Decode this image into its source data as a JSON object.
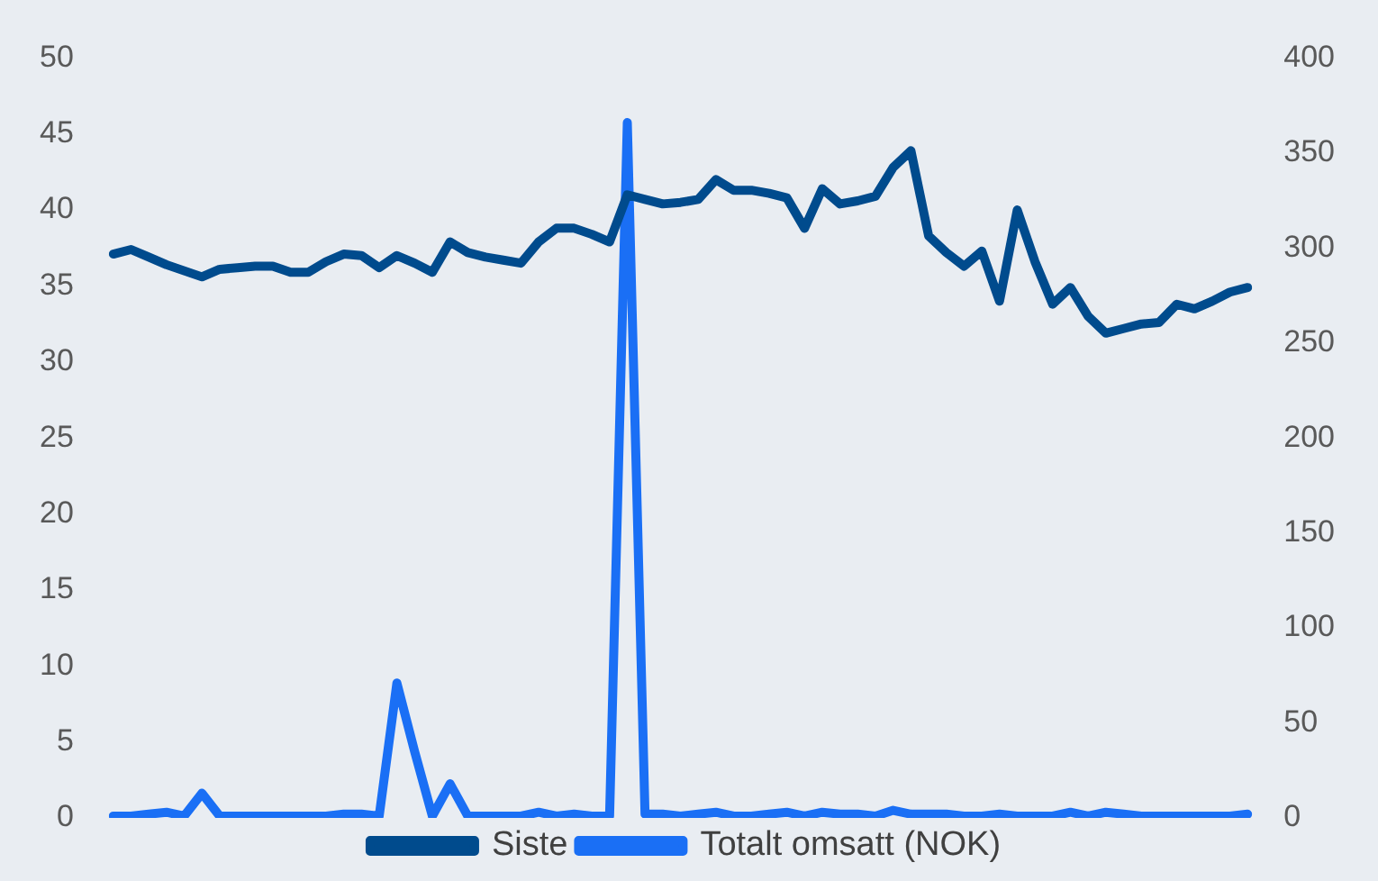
{
  "chart_data": {
    "type": "line",
    "categories": [
      null,
      null,
      null,
      null,
      null,
      null,
      null,
      null,
      null,
      null,
      null,
      null,
      null,
      null,
      null,
      null,
      null,
      null,
      null,
      null,
      null,
      null,
      null,
      null,
      null,
      null,
      null,
      null,
      null,
      null,
      null,
      null,
      null,
      null,
      null,
      null,
      null,
      null,
      null,
      null,
      null,
      null,
      null,
      null,
      null,
      null,
      null,
      null,
      null,
      null,
      null,
      null,
      null,
      null,
      null,
      null,
      null,
      null,
      null,
      null,
      null,
      null,
      null,
      null,
      null
    ],
    "series": [
      {
        "name": "Siste",
        "color": "#004b8d",
        "values": [
          37.1,
          37.4,
          36.9,
          36.4,
          36.0,
          35.6,
          36.1,
          36.2,
          36.3,
          36.3,
          35.9,
          35.9,
          36.6,
          37.1,
          37.0,
          36.2,
          37.0,
          36.5,
          35.9,
          37.9,
          37.2,
          36.9,
          36.7,
          36.5,
          37.9,
          38.8,
          38.8,
          38.4,
          37.9,
          41.0,
          40.7,
          40.4,
          40.5,
          40.7,
          42.0,
          41.3,
          41.3,
          41.1,
          40.8,
          38.8,
          41.4,
          40.4,
          40.6,
          40.9,
          42.8,
          43.9,
          38.3,
          37.2,
          36.3,
          37.3,
          34.0,
          40.0,
          36.6,
          33.8,
          34.9,
          33.0,
          31.9,
          32.2,
          32.5,
          32.6,
          33.8,
          33.5,
          34.0,
          34.6,
          34.9
        ]
      },
      {
        "name": "Totalt omsatt (NOK)",
        "color": "#1a6ff5",
        "axis": "y2",
        "values": [
          1,
          1,
          2,
          3,
          1,
          13,
          1,
          1,
          1,
          1,
          1,
          1,
          1,
          2,
          2,
          1,
          71,
          35,
          1,
          18,
          1,
          1,
          1,
          1,
          3,
          1,
          2,
          1,
          1,
          366,
          2,
          2,
          1,
          2,
          3,
          1,
          1,
          2,
          3,
          1,
          3,
          2,
          2,
          1,
          4,
          2,
          2,
          2,
          1,
          1,
          2,
          1,
          1,
          1,
          3,
          1,
          3,
          2,
          1,
          1,
          1,
          1,
          1,
          1,
          2
        ]
      }
    ],
    "ylim": [
      0,
      50
    ],
    "yticks": [
      0,
      5,
      10,
      15,
      20,
      25,
      30,
      35,
      40,
      45,
      50
    ],
    "y2lim": [
      0,
      400
    ],
    "y2ticks": [
      0,
      50,
      100,
      150,
      200,
      250,
      300,
      350,
      400
    ],
    "grid": false,
    "legend": "bottom",
    "marker": "none",
    "line_style": "solid"
  }
}
